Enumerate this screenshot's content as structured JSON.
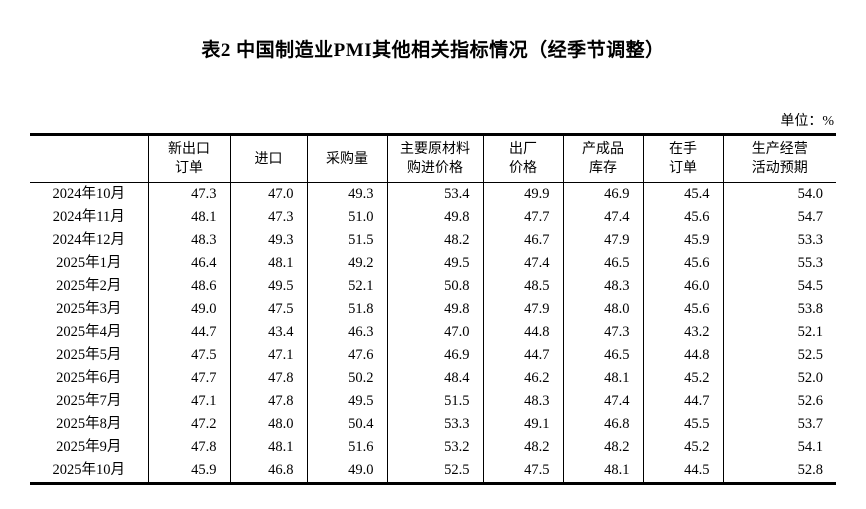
{
  "page": {
    "title": "表2 中国制造业PMI其他相关指标情况（经季节调整）",
    "unit_label": "单位：%"
  },
  "colors": {
    "text": "#000000",
    "background": "#ffffff",
    "border": "#000000"
  },
  "table": {
    "columns": [
      "",
      "新出口\n订单",
      "进口",
      "采购量",
      "主要原材料\n购进价格",
      "出厂\n价格",
      "产成品\n库存",
      "在手\n订单",
      "生产经营\n活动预期"
    ],
    "rows": [
      {
        "label": "2024年10月",
        "values": [
          "47.3",
          "47.0",
          "49.3",
          "53.4",
          "49.9",
          "46.9",
          "45.4",
          "54.0"
        ]
      },
      {
        "label": "2024年11月",
        "values": [
          "48.1",
          "47.3",
          "51.0",
          "49.8",
          "47.7",
          "47.4",
          "45.6",
          "54.7"
        ]
      },
      {
        "label": "2024年12月",
        "values": [
          "48.3",
          "49.3",
          "51.5",
          "48.2",
          "46.7",
          "47.9",
          "45.9",
          "53.3"
        ]
      },
      {
        "label": "2025年1月",
        "values": [
          "46.4",
          "48.1",
          "49.2",
          "49.5",
          "47.4",
          "46.5",
          "45.6",
          "55.3"
        ]
      },
      {
        "label": "2025年2月",
        "values": [
          "48.6",
          "49.5",
          "52.1",
          "50.8",
          "48.5",
          "48.3",
          "46.0",
          "54.5"
        ]
      },
      {
        "label": "2025年3月",
        "values": [
          "49.0",
          "47.5",
          "51.8",
          "49.8",
          "47.9",
          "48.0",
          "45.6",
          "53.8"
        ]
      },
      {
        "label": "2025年4月",
        "values": [
          "44.7",
          "43.4",
          "46.3",
          "47.0",
          "44.8",
          "47.3",
          "43.2",
          "52.1"
        ]
      },
      {
        "label": "2025年5月",
        "values": [
          "47.5",
          "47.1",
          "47.6",
          "46.9",
          "44.7",
          "46.5",
          "44.8",
          "52.5"
        ]
      },
      {
        "label": "2025年6月",
        "values": [
          "47.7",
          "47.8",
          "50.2",
          "48.4",
          "46.2",
          "48.1",
          "45.2",
          "52.0"
        ]
      },
      {
        "label": "2025年7月",
        "values": [
          "47.1",
          "47.8",
          "49.5",
          "51.5",
          "48.3",
          "47.4",
          "44.7",
          "52.6"
        ]
      },
      {
        "label": "2025年8月",
        "values": [
          "47.2",
          "48.0",
          "50.4",
          "53.3",
          "49.1",
          "46.8",
          "45.5",
          "53.7"
        ]
      },
      {
        "label": "2025年9月",
        "values": [
          "47.8",
          "48.1",
          "51.6",
          "53.2",
          "48.2",
          "48.2",
          "45.2",
          "54.1"
        ]
      },
      {
        "label": "2025年10月",
        "values": [
          "45.9",
          "46.8",
          "49.0",
          "52.5",
          "47.5",
          "48.1",
          "44.5",
          "52.8"
        ]
      }
    ]
  }
}
